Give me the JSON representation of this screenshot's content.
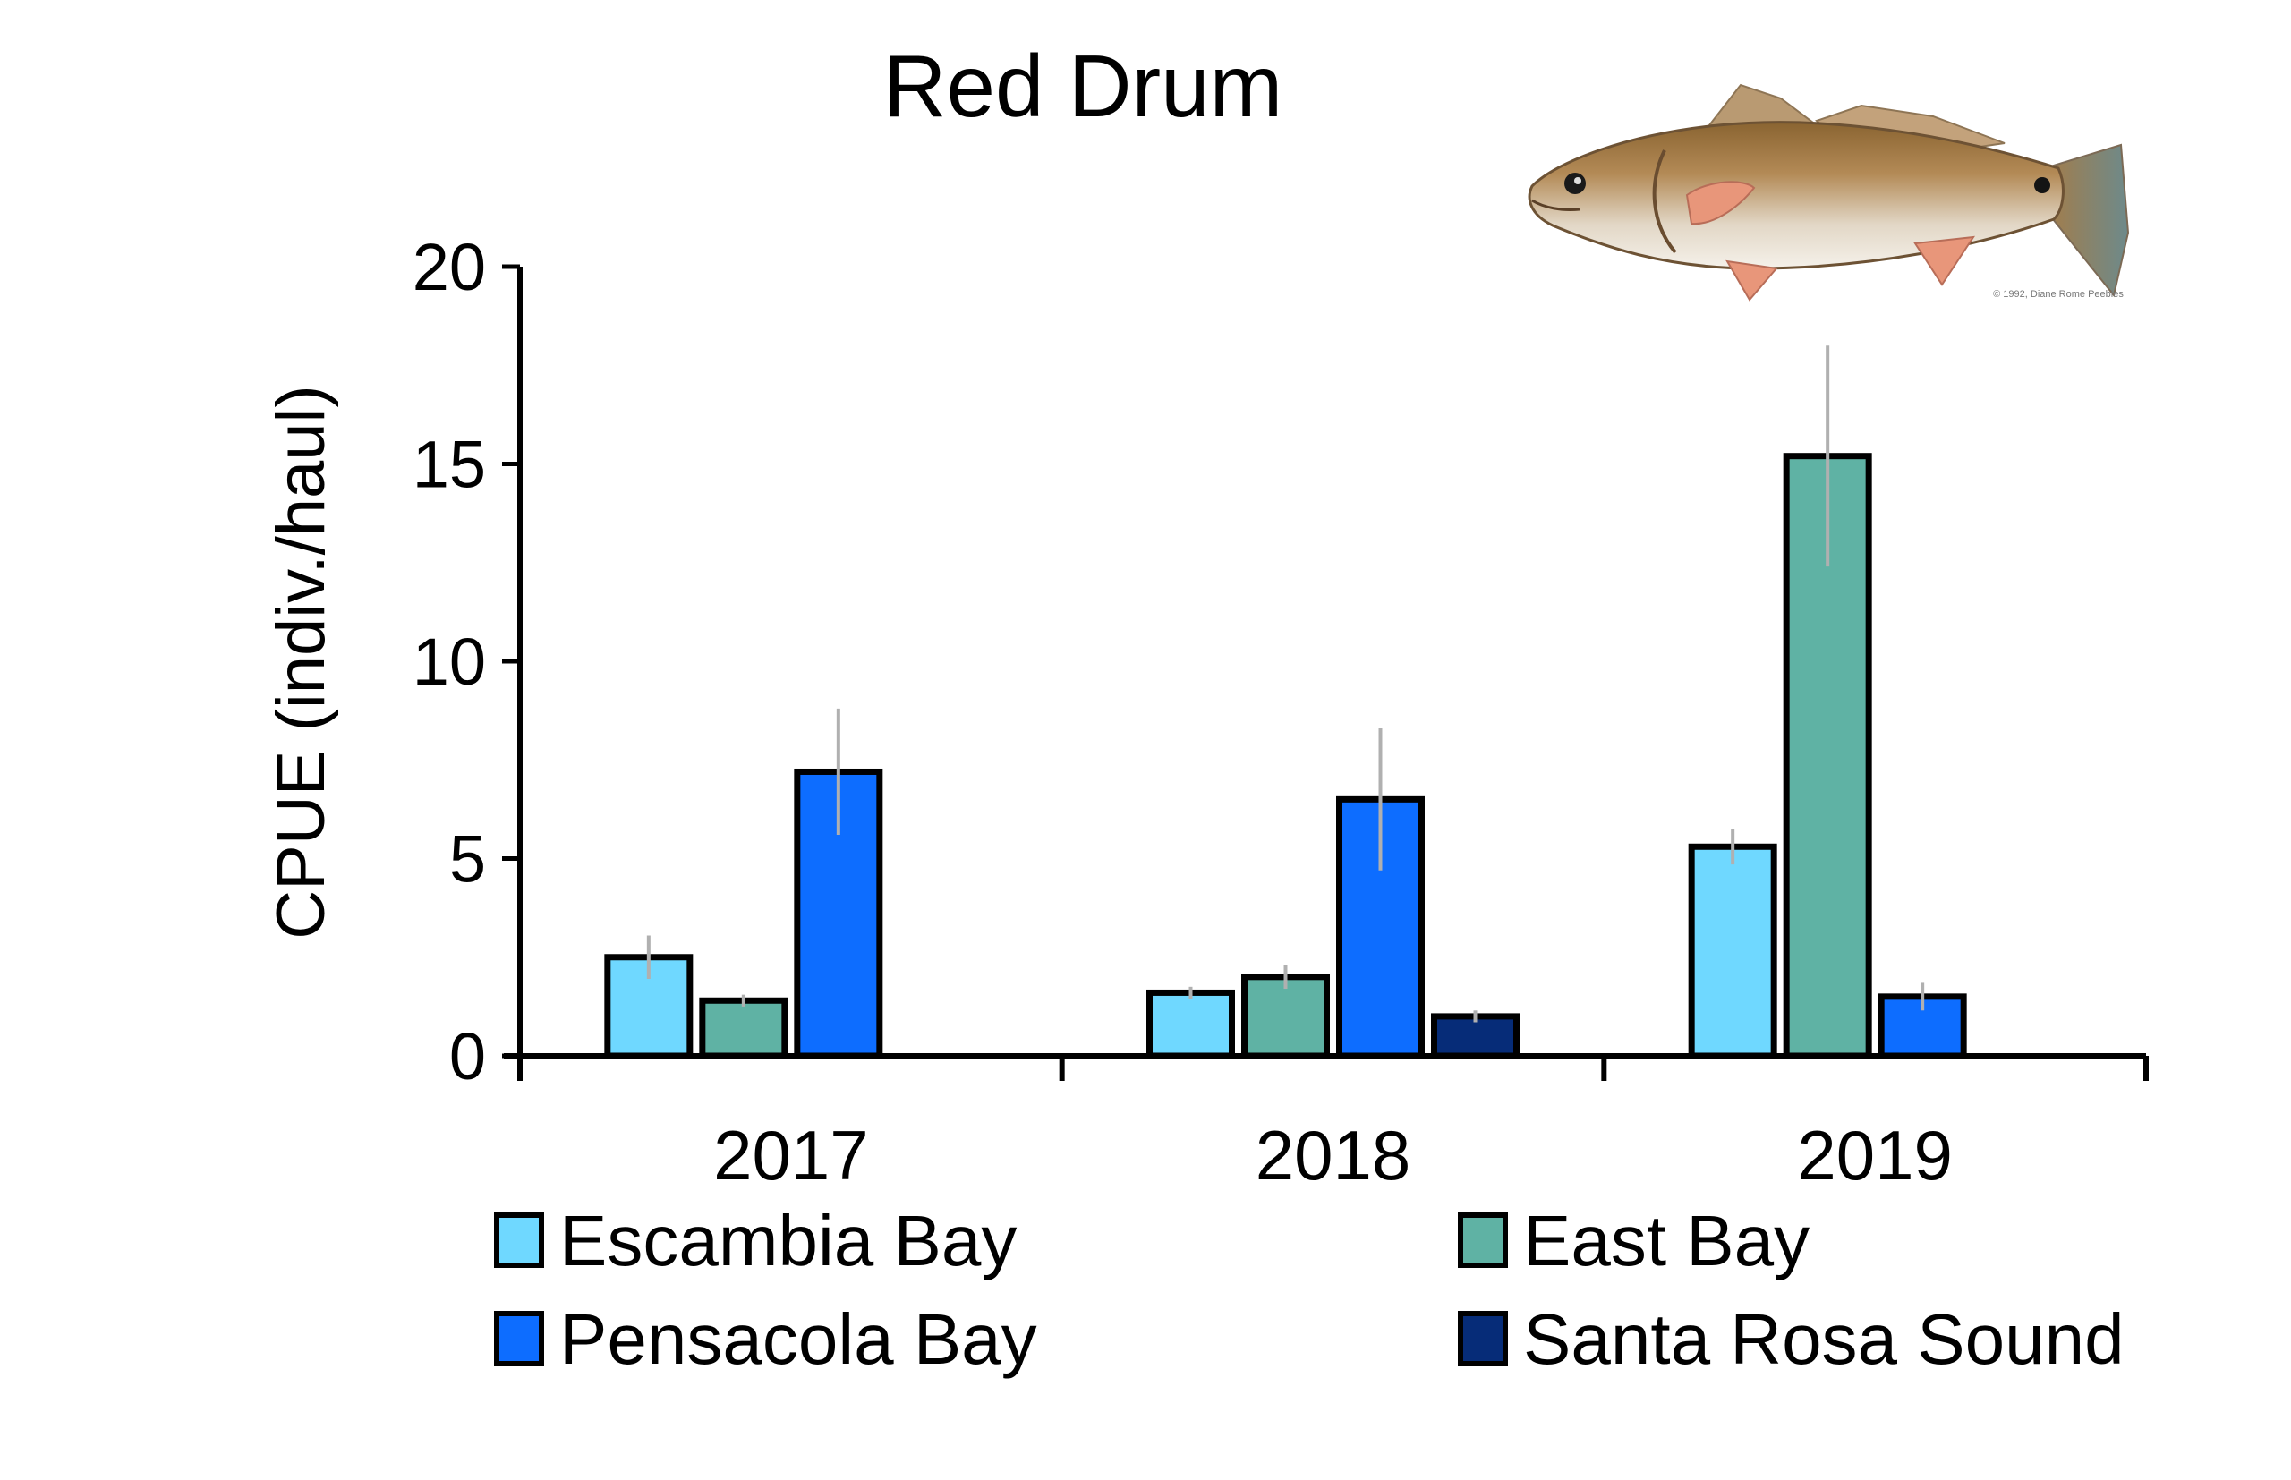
{
  "chart_data": {
    "type": "bar",
    "title": "Red Drum",
    "ylabel": "CPUE (indiv./haul)",
    "xlabel": "",
    "ylim": [
      0,
      20
    ],
    "yticks": [
      0,
      5,
      10,
      15,
      20
    ],
    "categories": [
      "2017",
      "2018",
      "2019"
    ],
    "series": [
      {
        "name": "Escambia Bay",
        "color": "#6fd8ff",
        "values": [
          2.5,
          1.6,
          5.3
        ],
        "error": [
          0.55,
          0.15,
          0.45
        ]
      },
      {
        "name": "East Bay",
        "color": "#5fb2a4",
        "values": [
          1.4,
          2.0,
          15.2
        ],
        "error": [
          0.15,
          0.3,
          2.8
        ]
      },
      {
        "name": "Pensacola Bay",
        "color": "#0d6dff",
        "values": [
          7.2,
          6.5,
          1.5
        ],
        "error": [
          1.6,
          1.8,
          0.35
        ]
      },
      {
        "name": "Santa Rosa Sound",
        "color": "#062c78",
        "values": [
          null,
          1.0,
          null
        ],
        "error": [
          null,
          0.15,
          null
        ]
      }
    ],
    "error_bar_color": "#b0b0b0",
    "legend_position": "bottom",
    "grid": false
  },
  "image": {
    "subject": "fish-illustration",
    "credit": "© 1992, Diane Rome Peebles"
  }
}
